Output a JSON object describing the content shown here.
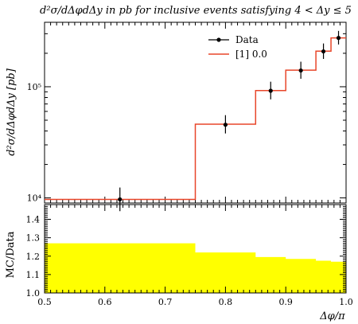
{
  "chart_data": [
    {
      "type": "line",
      "title": "d²σ/dΔφdΔy in pb for inclusive events satisfying 4 < Δy ≤ 5",
      "ylabel": "d²σ/dΔφdΔy [pb]",
      "yscale": "log",
      "ylim": [
        9000,
        380000
      ],
      "xlim": [
        0.5,
        1.0
      ],
      "y_ticks": [
        {
          "value": 10000,
          "label": "10⁴"
        },
        {
          "value": 100000,
          "label": "10⁵"
        }
      ],
      "legend": {
        "placement": "top-right",
        "entries": [
          "Data",
          "[1] 0.0"
        ]
      },
      "series": [
        {
          "name": "Data",
          "style": "points-with-errorbars",
          "color": "#000000",
          "x": [
            0.625,
            0.8,
            0.875,
            0.925,
            0.9625,
            0.9875
          ],
          "y": [
            9700,
            45500,
            92000,
            140000,
            208000,
            275000
          ],
          "y_err_low": [
            7600,
            38000,
            77000,
            118000,
            178000,
            240000
          ],
          "y_err_high": [
            12400,
            55500,
            111000,
            168000,
            245000,
            318000
          ]
        },
        {
          "name": "[1] 0.0",
          "style": "step",
          "color": "#e8462a",
          "bin_edges": [
            0.5,
            0.75,
            0.85,
            0.9,
            0.95,
            0.975,
            1.0
          ],
          "values": [
            9700,
            46000,
            92500,
            141000,
            209000,
            275000
          ]
        }
      ]
    },
    {
      "type": "area",
      "ylabel": "MC/Data",
      "xlabel": "Δφ/π",
      "ylim": [
        1.0,
        1.48
      ],
      "xlim": [
        0.5,
        1.0
      ],
      "x_ticks": [
        0.5,
        0.6,
        0.7,
        0.8,
        0.9,
        1.0
      ],
      "y_ticks": [
        1.0,
        1.1,
        1.2,
        1.3,
        1.4
      ],
      "fill_color": "#ffff00",
      "bin_edges": [
        0.5,
        0.75,
        0.85,
        0.9,
        0.95,
        0.975,
        1.0
      ],
      "values": [
        1.27,
        1.22,
        1.195,
        1.185,
        1.175,
        1.17
      ]
    }
  ]
}
